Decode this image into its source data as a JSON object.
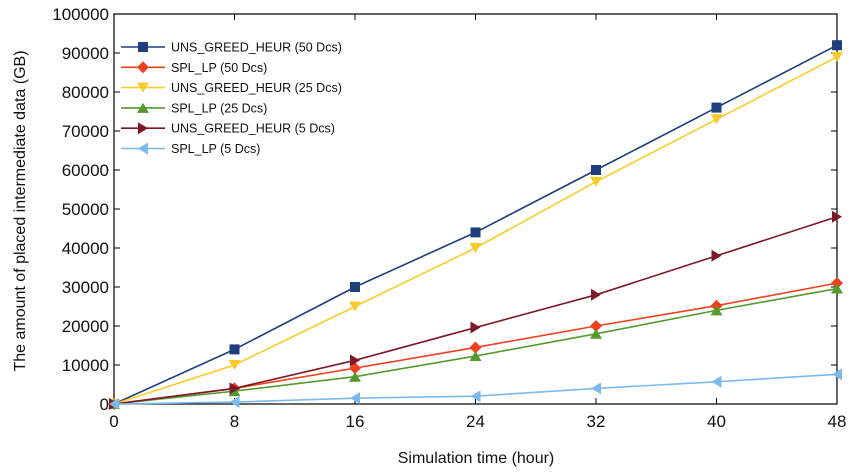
{
  "chart_data": {
    "type": "line",
    "xlabel": "Simulation time (hour)",
    "ylabel": "The amount of placed intermediate data (GB)",
    "xlim": [
      0,
      48
    ],
    "ylim": [
      0,
      100000
    ],
    "xticks": [
      "0",
      "8",
      "16",
      "24",
      "32",
      "40",
      "48"
    ],
    "yticks": [
      "0",
      "10000",
      "20000",
      "30000",
      "40000",
      "50000",
      "60000",
      "70000",
      "80000",
      "90000",
      "100000"
    ],
    "x": [
      0,
      8,
      16,
      24,
      32,
      40,
      48
    ],
    "grid": false,
    "legend_position": "top-left",
    "series": [
      {
        "name": "UNS_GREED_HEUR (50 Dcs)",
        "color": "#1f3e7d",
        "marker": "square",
        "values": [
          0,
          14000,
          30000,
          44000,
          60000,
          76000,
          92000
        ]
      },
      {
        "name": "SPL_LP (50 Dcs)",
        "color": "#f0411e",
        "marker": "diamond",
        "values": [
          0,
          4000,
          9200,
          14500,
          20000,
          25200,
          31000
        ]
      },
      {
        "name": "UNS_GREED_HEUR (25 Dcs)",
        "color": "#f8cc28",
        "marker": "triangle-down",
        "values": [
          0,
          10000,
          25000,
          40000,
          57000,
          73000,
          89000
        ]
      },
      {
        "name": "SPL_LP (25 Dcs)",
        "color": "#559a2d",
        "marker": "triangle-up",
        "values": [
          0,
          3300,
          7000,
          12300,
          18000,
          24000,
          29600
        ]
      },
      {
        "name": "UNS_GREED_HEUR (5 Dcs)",
        "color": "#7b1a26",
        "marker": "triangle-right",
        "values": [
          0,
          4000,
          11200,
          19600,
          28000,
          38000,
          48000
        ]
      },
      {
        "name": "SPL_LP (5 Dcs)",
        "color": "#7eb9ee",
        "marker": "triangle-left",
        "values": [
          0,
          500,
          1500,
          2000,
          4000,
          5700,
          7600
        ]
      }
    ]
  }
}
